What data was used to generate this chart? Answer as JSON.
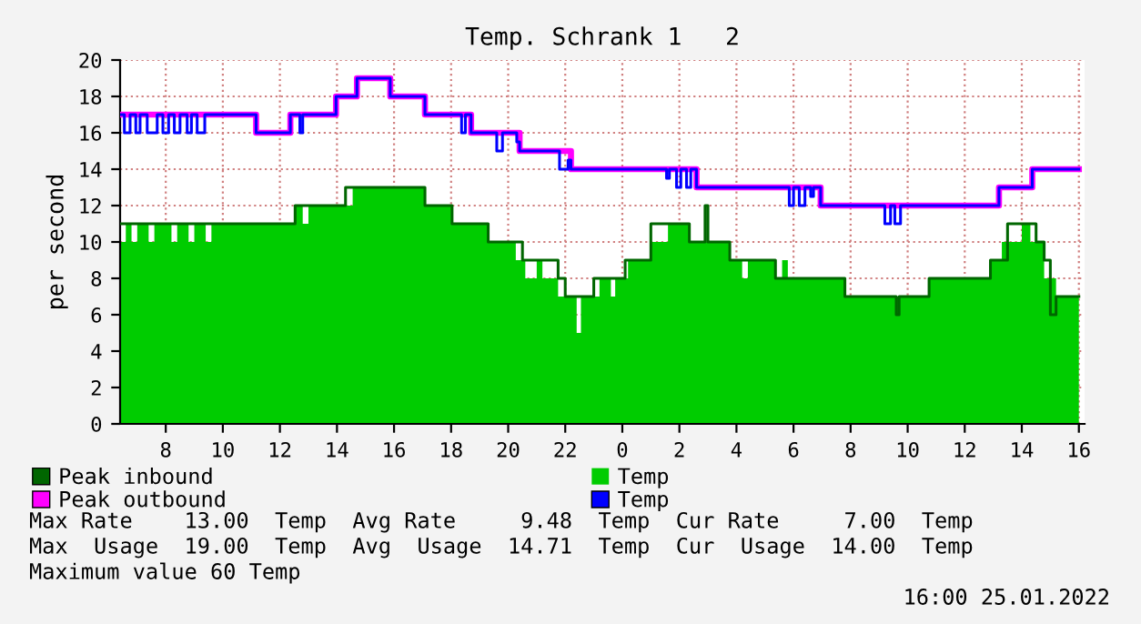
{
  "chart_data": {
    "type": "step",
    "title": "Temp. Schrank 1   2",
    "ylabel": "per second",
    "xlim": [
      "2022-01-24T06:24",
      "2022-01-25T16:12"
    ],
    "ylim": [
      0,
      20
    ],
    "xticks": [
      {
        "value": "2022-01-24T08:00",
        "label": "8"
      },
      {
        "value": "2022-01-24T10:00",
        "label": "10"
      },
      {
        "value": "2022-01-24T12:00",
        "label": "12"
      },
      {
        "value": "2022-01-24T14:00",
        "label": "14"
      },
      {
        "value": "2022-01-24T16:00",
        "label": "16"
      },
      {
        "value": "2022-01-24T18:00",
        "label": "18"
      },
      {
        "value": "2022-01-24T20:00",
        "label": "20"
      },
      {
        "value": "2022-01-24T22:00",
        "label": "22"
      },
      {
        "value": "2022-01-25T00:00",
        "label": "0"
      },
      {
        "value": "2022-01-25T02:00",
        "label": "2"
      },
      {
        "value": "2022-01-25T04:00",
        "label": "4"
      },
      {
        "value": "2022-01-25T06:00",
        "label": "6"
      },
      {
        "value": "2022-01-25T08:00",
        "label": "8"
      },
      {
        "value": "2022-01-25T10:00",
        "label": "10"
      },
      {
        "value": "2022-01-25T12:00",
        "label": "12"
      },
      {
        "value": "2022-01-25T14:00",
        "label": "14"
      },
      {
        "value": "2022-01-25T16:00",
        "label": "16"
      }
    ],
    "yticks": [
      0,
      2,
      4,
      6,
      8,
      10,
      12,
      14,
      16,
      18,
      20
    ],
    "grid": true,
    "legend": "bottom",
    "line_style": "solid",
    "marker": "none",
    "series": [
      {
        "name": "Peak inbound",
        "color": "#006600",
        "x": [
          "2022-01-24T06:24",
          "2022-01-24T07:24",
          "2022-01-24T09:48",
          "2022-01-24T12:32",
          "2022-01-24T14:18",
          "2022-01-24T17:05",
          "2022-01-24T18:02",
          "2022-01-24T19:18",
          "2022-01-24T20:12",
          "2022-01-24T20:30",
          "2022-01-24T21:12",
          "2022-01-24T21:45",
          "2022-01-24T22:00",
          "2022-01-24T22:33",
          "2022-01-24T23:00",
          "2022-01-25T00:06",
          "2022-01-25T01:00",
          "2022-01-25T02:21",
          "2022-01-25T02:54",
          "2022-01-25T03:00",
          "2022-01-25T03:46",
          "2022-01-25T05:22",
          "2022-01-25T07:48",
          "2022-01-25T09:36",
          "2022-01-25T09:42",
          "2022-01-25T10:45",
          "2022-01-25T12:54",
          "2022-01-25T13:30",
          "2022-01-25T14:30",
          "2022-01-25T14:47",
          "2022-01-25T15:00",
          "2022-01-25T15:12",
          "2022-01-25T16:00"
        ],
        "values": [
          11,
          11,
          11,
          12,
          13,
          12,
          11,
          10,
          10,
          9,
          9,
          8,
          7,
          7,
          8,
          9,
          11,
          10,
          12,
          10,
          9,
          8,
          7,
          6,
          7,
          8,
          9,
          11,
          10,
          9,
          6,
          7,
          7
        ]
      },
      {
        "name": "Peak outbound",
        "color": "#ff00ff",
        "x": [
          "2022-01-24T06:24",
          "2022-01-24T11:10",
          "2022-01-24T12:22",
          "2022-01-24T13:58",
          "2022-01-24T14:42",
          "2022-01-24T15:52",
          "2022-01-24T17:05",
          "2022-01-24T18:42",
          "2022-01-24T20:24",
          "2022-01-24T22:12",
          "2022-01-25T02:36",
          "2022-01-25T06:57",
          "2022-01-25T13:12",
          "2022-01-25T14:22",
          "2022-01-25T16:00"
        ],
        "values": [
          17,
          16,
          17,
          18,
          19,
          18,
          17,
          16,
          15,
          14,
          13,
          12,
          13,
          14,
          14
        ]
      },
      {
        "name": "Temp",
        "type": "area",
        "color": "#00cc00",
        "x": [
          "2022-01-24T06:24",
          "2022-01-24T06:36",
          "2022-01-24T06:48",
          "2022-01-24T07:00",
          "2022-01-24T07:24",
          "2022-01-24T07:36",
          "2022-01-24T08:12",
          "2022-01-24T08:24",
          "2022-01-24T08:48",
          "2022-01-24T09:00",
          "2022-01-24T09:24",
          "2022-01-24T09:36",
          "2022-01-24T12:32",
          "2022-01-24T12:48",
          "2022-01-24T13:00",
          "2022-01-24T14:33",
          "2022-01-24T17:05",
          "2022-01-24T18:02",
          "2022-01-24T19:18",
          "2022-01-24T20:16",
          "2022-01-24T20:36",
          "2022-01-24T21:00",
          "2022-01-24T21:12",
          "2022-01-24T21:45",
          "2022-01-24T22:24",
          "2022-01-24T22:33",
          "2022-01-24T23:12",
          "2022-01-24T23:36",
          "2022-01-24T23:45",
          "2022-01-25T00:12",
          "2022-01-25T01:00",
          "2022-01-25T01:36",
          "2022-01-25T02:21",
          "2022-01-25T03:46",
          "2022-01-25T04:12",
          "2022-01-25T04:24",
          "2022-01-25T05:22",
          "2022-01-25T05:36",
          "2022-01-25T05:48",
          "2022-01-25T07:48",
          "2022-01-25T10:45",
          "2022-01-25T12:54",
          "2022-01-25T13:18",
          "2022-01-25T14:00",
          "2022-01-25T14:18",
          "2022-01-25T14:47",
          "2022-01-25T15:12",
          "2022-01-25T16:00"
        ],
        "values": [
          10,
          11,
          10,
          11,
          10,
          11,
          10,
          11,
          10,
          11,
          10,
          11,
          12,
          11,
          12,
          13,
          12,
          11,
          10,
          9,
          8,
          9,
          8,
          7,
          5,
          7,
          8,
          7,
          8,
          9,
          10,
          11,
          10,
          9,
          8,
          9,
          8,
          9,
          8,
          7,
          8,
          9,
          10,
          11,
          10,
          8,
          7,
          7
        ]
      },
      {
        "name": "Temp",
        "color": "#0000ff",
        "x": [
          "2022-01-24T06:24",
          "2022-01-24T06:33",
          "2022-01-24T06:45",
          "2022-01-24T06:57",
          "2022-01-24T07:06",
          "2022-01-24T07:21",
          "2022-01-24T07:42",
          "2022-01-24T07:54",
          "2022-01-24T08:06",
          "2022-01-24T08:18",
          "2022-01-24T08:30",
          "2022-01-24T08:45",
          "2022-01-24T08:54",
          "2022-01-24T09:06",
          "2022-01-24T09:22",
          "2022-01-24T11:10",
          "2022-01-24T12:22",
          "2022-01-24T12:42",
          "2022-01-24T12:48",
          "2022-01-24T13:58",
          "2022-01-24T14:42",
          "2022-01-24T15:52",
          "2022-01-24T17:05",
          "2022-01-24T18:22",
          "2022-01-24T18:30",
          "2022-01-24T18:42",
          "2022-01-24T19:36",
          "2022-01-24T19:48",
          "2022-01-24T20:18",
          "2022-01-24T20:24",
          "2022-01-24T21:48",
          "2022-01-24T22:06",
          "2022-01-24T22:12",
          "2022-01-25T01:33",
          "2022-01-25T01:39",
          "2022-01-25T01:54",
          "2022-01-25T02:03",
          "2022-01-25T02:15",
          "2022-01-25T02:24",
          "2022-01-25T02:36",
          "2022-01-25T05:51",
          "2022-01-25T06:00",
          "2022-01-25T06:12",
          "2022-01-25T06:24",
          "2022-01-25T06:36",
          "2022-01-25T06:42",
          "2022-01-25T06:57",
          "2022-01-25T09:12",
          "2022-01-25T09:24",
          "2022-01-25T09:33",
          "2022-01-25T09:45",
          "2022-01-25T13:12",
          "2022-01-25T14:22",
          "2022-01-25T16:00"
        ],
        "values": [
          17,
          16,
          17,
          16,
          17,
          16,
          17,
          16,
          17,
          16,
          17,
          16,
          17,
          16,
          17,
          16,
          17,
          16,
          17,
          18,
          19,
          18,
          17,
          16,
          17,
          16,
          15,
          16,
          15.5,
          15,
          14,
          14.5,
          14,
          13.5,
          14,
          13,
          14,
          13,
          14,
          13,
          12,
          13,
          12,
          13,
          12.5,
          13,
          12,
          11,
          12,
          11,
          12,
          13,
          14,
          14
        ]
      }
    ],
    "annotations": [
      "Max Rate    13.00  Temp  Avg Rate     9.48  Temp  Cur Rate     7.00  Temp",
      "Max  Usage  19.00  Temp  Avg  Usage  14.71  Temp  Cur  Usage  14.00  Temp",
      "Maximum value 60 Temp",
      "16:00 25.01.2022"
    ]
  }
}
